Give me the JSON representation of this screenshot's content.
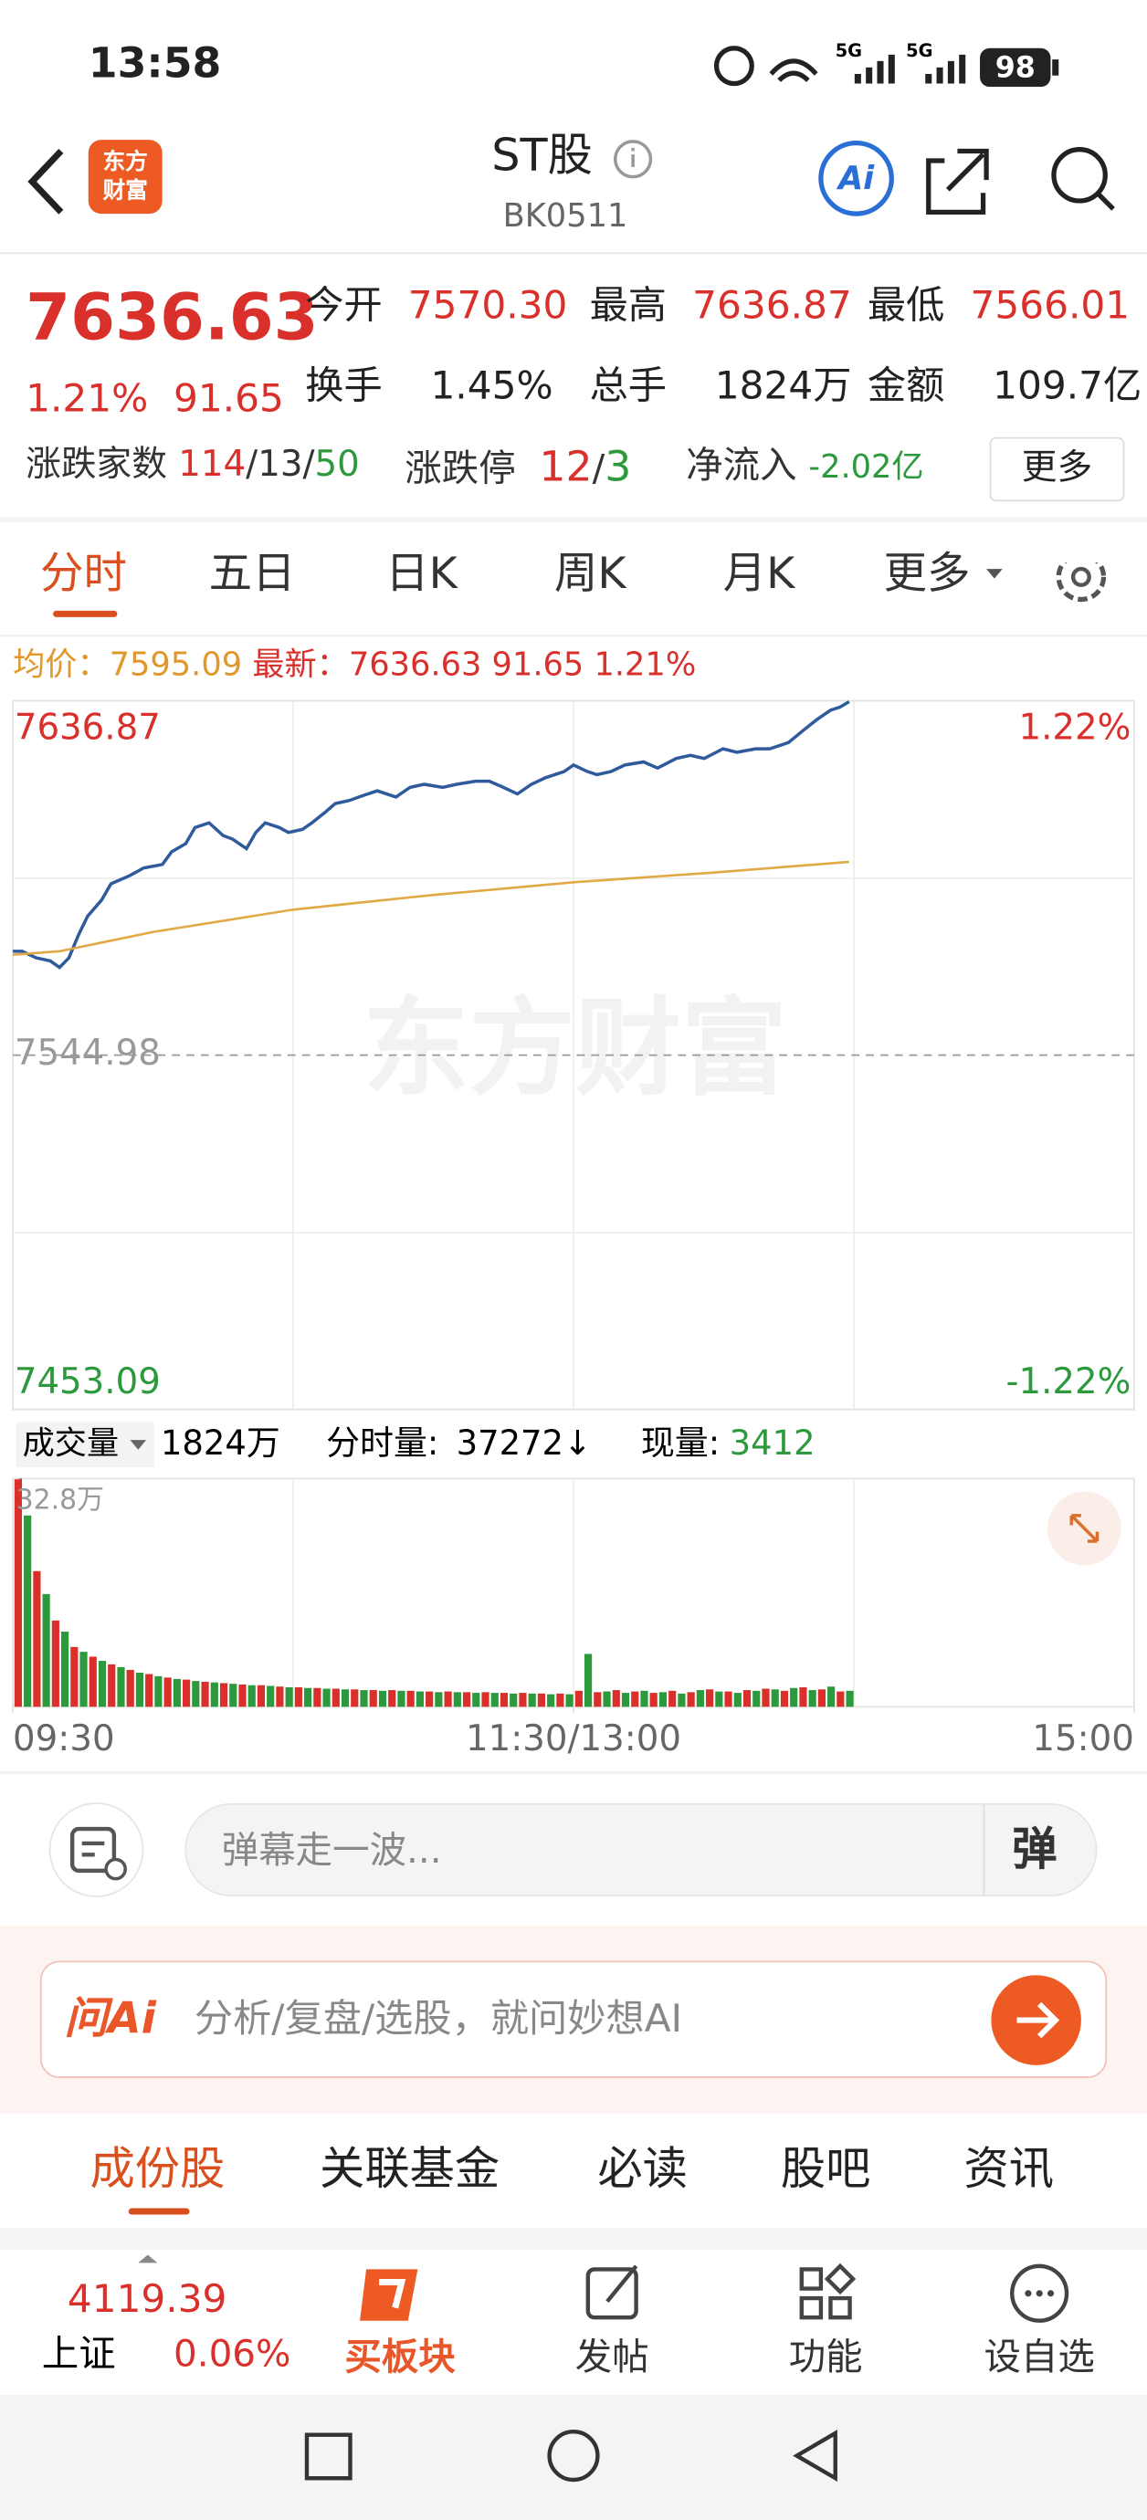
{
  "status_bar": {
    "time": "13:58",
    "network": [
      "5G",
      "5G"
    ],
    "battery": "98"
  },
  "header": {
    "logo": [
      "东方",
      "财富"
    ],
    "title": "ST股",
    "code": "BK0511",
    "ai": "Ai"
  },
  "quote": {
    "price": "7636.63",
    "change_pct": "1.21%",
    "change": "91.65",
    "stats": [
      [
        "今开",
        "7570.30"
      ],
      [
        "最高",
        "7636.87"
      ],
      [
        "最低",
        "7566.01"
      ],
      [
        "换手",
        "1.45%"
      ],
      [
        "总手",
        "1824万"
      ],
      [
        "金额",
        "109.7亿"
      ]
    ],
    "breadth": {
      "label": "涨跌家数",
      "up": "114",
      "flat": "13",
      "down": "50",
      "sep": "/"
    },
    "limit": {
      "label": "涨跌停",
      "up": "12",
      "down": "3",
      "sep": "/"
    },
    "net_inflow": {
      "label": "净流入",
      "value": "-2.02亿"
    },
    "more": "更多"
  },
  "tabs": [
    "分时",
    "五日",
    "日K",
    "周K",
    "月K",
    "更多"
  ],
  "info_line": {
    "avg_label": "均价：",
    "avg": "7595.09",
    "last_label": "最新：",
    "last": "7636.63",
    "change": "91.65",
    "change_pct": "1.21%"
  },
  "watermark": "东方财富",
  "volume_header": {
    "label": "成交量",
    "total": "1824万",
    "minute_label": "分时量:",
    "minute": "37272↓",
    "now_label": "现量:",
    "now": "3412"
  },
  "chart_data": [
    {
      "type": "line",
      "xlim": [
        0,
        240
      ],
      "ylim": [
        7453.09,
        7636.87
      ],
      "yticks": [
        7636.87,
        7544.98,
        7453.09
      ],
      "y2lim": [
        -1.22,
        1.22
      ],
      "y2ticks": [
        {
          "value": 1.22,
          "label": "1.22%"
        },
        {
          "value": -1.22,
          "label": "-1.22%"
        }
      ],
      "series": [
        {
          "color": "#2f5b9c",
          "x": [
            0,
            2,
            5,
            8,
            10,
            12,
            14,
            16,
            19,
            21,
            25,
            28,
            32,
            34,
            37,
            39,
            42,
            45,
            47,
            50,
            52,
            54,
            57,
            59,
            62,
            64,
            67,
            69,
            72,
            75,
            78,
            82,
            85,
            88,
            92,
            95,
            99,
            102,
            105,
            108,
            111,
            114,
            118,
            120,
            123,
            125,
            128,
            131,
            135,
            138,
            142,
            145,
            148,
            152,
            155,
            159,
            162,
            166,
            169,
            172,
            175,
            177,
            179
          ],
          "values": [
            7571.9,
            7571.9,
            7570.2,
            7569.4,
            7567.7,
            7570.2,
            7576.0,
            7581.0,
            7585.2,
            7589.4,
            7591.5,
            7593.5,
            7594.4,
            7597.7,
            7599.8,
            7604.0,
            7605.2,
            7601.9,
            7601.0,
            7598.5,
            7602.7,
            7605.2,
            7604.0,
            7602.7,
            7603.5,
            7605.2,
            7608.1,
            7610.2,
            7611.0,
            7612.3,
            7613.5,
            7611.9,
            7614.4,
            7615.2,
            7614.4,
            7615.2,
            7616.0,
            7616.0,
            7614.4,
            7612.7,
            7615.2,
            7616.9,
            7618.5,
            7620.2,
            7618.5,
            7617.7,
            7618.5,
            7620.2,
            7621.0,
            7619.4,
            7621.9,
            7622.7,
            7621.9,
            7624.4,
            7623.5,
            7624.4,
            7624.4,
            7626.0,
            7629.0,
            7631.9,
            7634.4,
            7635.2,
            7636.63
          ]
        },
        {
          "color": "#e2a947",
          "x": [
            0,
            10,
            30,
            60,
            90,
            120,
            150,
            179
          ],
          "values": [
            7571.0,
            7571.9,
            7576.9,
            7582.7,
            7586.5,
            7589.8,
            7592.3,
            7595.09
          ]
        }
      ]
    },
    {
      "type": "bar",
      "xlim": [
        0,
        240
      ],
      "ylim": [
        0,
        32.8
      ],
      "yticks": [
        {
          "value": 32.8,
          "label": "32.8万"
        }
      ],
      "xticks": [
        {
          "value": 0,
          "label": "09:30"
        },
        {
          "value": 120,
          "label": "11:30/13:00"
        },
        {
          "value": 240,
          "label": "15:00"
        }
      ],
      "series": [
        {
          "color": "#d9302c",
          "x": [
            0,
            4,
            8,
            12,
            16,
            20,
            24,
            28,
            32,
            36,
            40,
            44,
            48,
            52,
            56,
            60,
            64,
            68,
            72,
            76,
            80,
            84,
            88,
            92,
            96,
            100,
            104,
            108,
            112,
            116,
            120,
            124,
            128,
            132,
            136,
            140,
            144,
            148,
            152,
            156,
            160,
            164,
            168,
            172,
            176
          ],
          "values": [
            32.8,
            19.5,
            12.4,
            8.6,
            7.2,
            6.1,
            5.3,
            4.7,
            4.2,
            3.9,
            3.6,
            3.4,
            3.2,
            3.1,
            2.9,
            2.8,
            2.7,
            2.6,
            2.5,
            2.4,
            2.4,
            2.3,
            2.2,
            2.2,
            2.1,
            2.1,
            2.0,
            2.0,
            1.9,
            1.9,
            2.3,
            2.1,
            2.4,
            2.2,
            2.0,
            2.3,
            2.1,
            2.5,
            2.2,
            2.4,
            2.6,
            2.3,
            2.8,
            2.5,
            2.2
          ]
        },
        {
          "color": "#2c9a3c",
          "x": [
            2,
            6,
            10,
            14,
            18,
            22,
            26,
            30,
            34,
            38,
            42,
            46,
            50,
            54,
            58,
            62,
            66,
            70,
            74,
            78,
            82,
            86,
            90,
            94,
            98,
            102,
            106,
            110,
            114,
            118,
            122,
            126,
            130,
            134,
            138,
            142,
            146,
            150,
            154,
            158,
            162,
            166,
            170,
            174,
            178
          ],
          "values": [
            27.5,
            16.2,
            10.8,
            7.9,
            6.6,
            5.7,
            4.9,
            4.4,
            4.0,
            3.7,
            3.5,
            3.3,
            3.1,
            3.0,
            2.8,
            2.7,
            2.6,
            2.5,
            2.4,
            2.3,
            2.3,
            2.2,
            2.1,
            2.1,
            2.0,
            2.0,
            1.9,
            1.9,
            1.8,
            1.8,
            7.6,
            2.2,
            2.0,
            2.3,
            2.1,
            1.9,
            2.4,
            2.2,
            2.0,
            2.3,
            2.5,
            2.7,
            2.4,
            2.9,
            2.3
          ]
        }
      ]
    }
  ],
  "danmu": {
    "placeholder": "弹幕走一波...",
    "button": "弹"
  },
  "ask_ai": {
    "logo": "问Ai",
    "placeholder": "分析/复盘/选股，就问妙想AI"
  },
  "section_tabs": [
    "成份股",
    "关联基金",
    "必读",
    "股吧",
    "资讯"
  ],
  "bottom_nav": {
    "index_value": "4119.39",
    "index_name": "上证",
    "index_change": "0.06%",
    "items": [
      "买板块",
      "发帖",
      "功能",
      "设自选"
    ]
  }
}
